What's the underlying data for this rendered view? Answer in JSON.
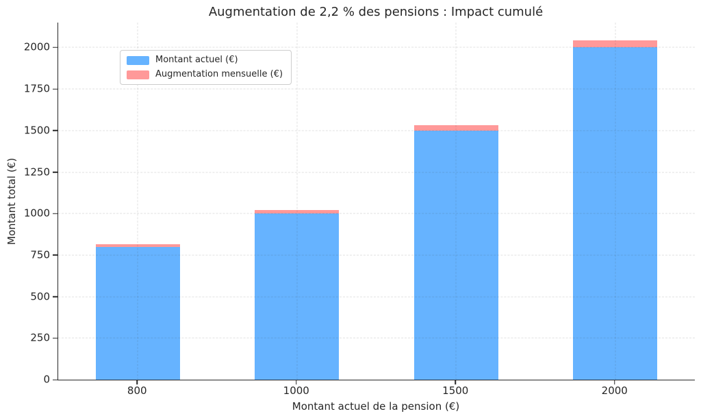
{
  "figure": {
    "background": "#ffffff",
    "text_color": "#262626",
    "spine_color": "#262626",
    "grid_color": "#d9d9d9",
    "grid_style": "dashed"
  },
  "chart_data": {
    "type": "bar",
    "stacked": true,
    "title": "Augmentation de 2,2 % des pensions : Impact cumulé",
    "xlabel": "Montant actuel de la pension (€)",
    "ylabel": "Montant total (€)",
    "categories": [
      "800",
      "1000",
      "1500",
      "2000"
    ],
    "series": [
      {
        "name": "Montant actuel (€)",
        "color": "#66b3ff",
        "values": [
          800,
          1000,
          1500,
          2000
        ]
      },
      {
        "name": "Augmentation mensuelle (€)",
        "color": "#ff9999",
        "values": [
          17.6,
          22,
          33,
          44
        ]
      }
    ],
    "totals": [
      817.6,
      1022,
      1533,
      2044
    ],
    "ylim": [
      0,
      2150
    ],
    "yticks": [
      0,
      250,
      500,
      750,
      1000,
      1250,
      1500,
      1750,
      2000
    ],
    "grid": "both",
    "legend": {
      "position": "upper-left",
      "entries": [
        "Montant actuel (€)",
        "Augmentation mensuelle (€)"
      ]
    },
    "bar_width_fraction": 0.53
  }
}
